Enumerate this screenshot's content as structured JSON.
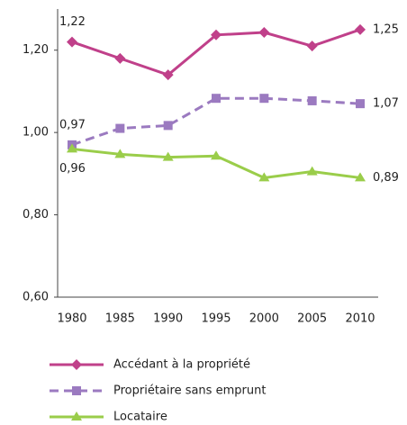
{
  "chart_data": {
    "type": "line",
    "categories": [
      "1980",
      "1985",
      "1990",
      "1995",
      "2000",
      "2005",
      "2010"
    ],
    "series": [
      {
        "name": "Accédant à la propriété",
        "color": "#c0408a",
        "marker": "diamond",
        "dashed": false,
        "values": [
          1.22,
          1.18,
          1.14,
          1.237,
          1.243,
          1.21,
          1.25
        ],
        "value_labels": [
          "1,22",
          null,
          null,
          null,
          null,
          null,
          "1,25"
        ]
      },
      {
        "name": "Propriétaire sans emprunt",
        "color": "#9b7ac0",
        "marker": "square",
        "dashed": true,
        "values": [
          0.97,
          1.01,
          1.017,
          1.083,
          1.083,
          1.077,
          1.07
        ],
        "value_labels": [
          "0,97",
          null,
          null,
          null,
          null,
          null,
          "1,07"
        ]
      },
      {
        "name": "Locataire",
        "color": "#9acd4a",
        "marker": "triangle",
        "dashed": false,
        "values": [
          0.96,
          0.947,
          0.94,
          0.943,
          0.89,
          0.905,
          0.89
        ],
        "value_labels": [
          "0,96",
          null,
          null,
          null,
          null,
          null,
          "0,89"
        ]
      }
    ],
    "ylim": [
      0.6,
      1.3
    ],
    "yticks": [
      {
        "value": 0.6,
        "label": "0,60"
      },
      {
        "value": 0.8,
        "label": "0,80"
      },
      {
        "value": 1.0,
        "label": "1,00"
      },
      {
        "value": 1.2,
        "label": "1,20"
      }
    ],
    "grid": false
  }
}
